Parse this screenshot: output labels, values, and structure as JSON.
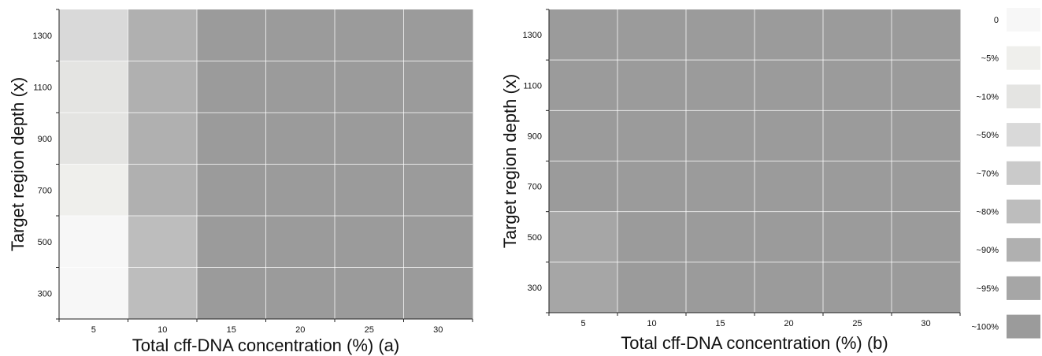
{
  "chart_data": [
    {
      "type": "heatmap",
      "panel_label": "(a)",
      "xlabel": "Total cff-DNA concentration (%) (a)",
      "ylabel": "Target region depth (x)",
      "x_categories": [
        "5",
        "10",
        "15",
        "20",
        "25",
        "30"
      ],
      "y_tick_labels": [
        "300",
        "500",
        "700",
        "900",
        "1100",
        "1300"
      ],
      "y_bins": [
        "200-400",
        "400-600",
        "600-800",
        "800-1000",
        "1000-1200",
        "1200-1400"
      ],
      "ylim": [
        200,
        1400
      ],
      "grid": true,
      "cells_note": "rows listed bottom to top (y_bins order), columns follow x_categories; values are legend levels",
      "cells": [
        [
          "0",
          "~80%",
          "~100%",
          "~100%",
          "~100%",
          "~100%"
        ],
        [
          "0",
          "~80%",
          "~100%",
          "~100%",
          "~100%",
          "~100%"
        ],
        [
          "~5%",
          "~90%",
          "~100%",
          "~100%",
          "~100%",
          "~100%"
        ],
        [
          "~10%",
          "~90%",
          "~100%",
          "~100%",
          "~100%",
          "~100%"
        ],
        [
          "~10%",
          "~90%",
          "~100%",
          "~100%",
          "~100%",
          "~100%"
        ],
        [
          "~50%",
          "~90%",
          "~100%",
          "~100%",
          "~100%",
          "~100%"
        ]
      ]
    },
    {
      "type": "heatmap",
      "panel_label": "(b)",
      "xlabel": "Total cff-DNA concentration (%) (b)",
      "ylabel": "Target region depth (x)",
      "x_categories": [
        "5",
        "10",
        "15",
        "20",
        "25",
        "30"
      ],
      "y_tick_labels": [
        "300",
        "500",
        "700",
        "900",
        "1100",
        "1300"
      ],
      "y_bins": [
        "200-400",
        "400-600",
        "600-800",
        "800-1000",
        "1000-1200",
        "1200-1400"
      ],
      "ylim": [
        200,
        1400
      ],
      "grid": true,
      "cells_note": "rows listed bottom to top (y_bins order), columns follow x_categories; values are legend levels",
      "cells": [
        [
          "~95%",
          "~100%",
          "~100%",
          "~100%",
          "~100%",
          "~100%"
        ],
        [
          "~95%",
          "~100%",
          "~100%",
          "~100%",
          "~100%",
          "~100%"
        ],
        [
          "~100%",
          "~100%",
          "~100%",
          "~100%",
          "~100%",
          "~100%"
        ],
        [
          "~100%",
          "~100%",
          "~100%",
          "~100%",
          "~100%",
          "~100%"
        ],
        [
          "~100%",
          "~100%",
          "~100%",
          "~100%",
          "~100%",
          "~100%"
        ],
        [
          "~100%",
          "~100%",
          "~100%",
          "~100%",
          "~100%",
          "~100%"
        ]
      ]
    }
  ],
  "legend": {
    "placement": "right",
    "items": [
      {
        "label": "0",
        "color": "#f7f7f7"
      },
      {
        "label": "~5%",
        "color": "#efefec"
      },
      {
        "label": "~10%",
        "color": "#e4e4e2"
      },
      {
        "label": "~50%",
        "color": "#d9d9d9"
      },
      {
        "label": "~70%",
        "color": "#cacaca"
      },
      {
        "label": "~80%",
        "color": "#bdbdbd"
      },
      {
        "label": "~90%",
        "color": "#b0b0b0"
      },
      {
        "label": "~95%",
        "color": "#a6a6a6"
      },
      {
        "label": "~100%",
        "color": "#9b9b9b"
      }
    ]
  }
}
